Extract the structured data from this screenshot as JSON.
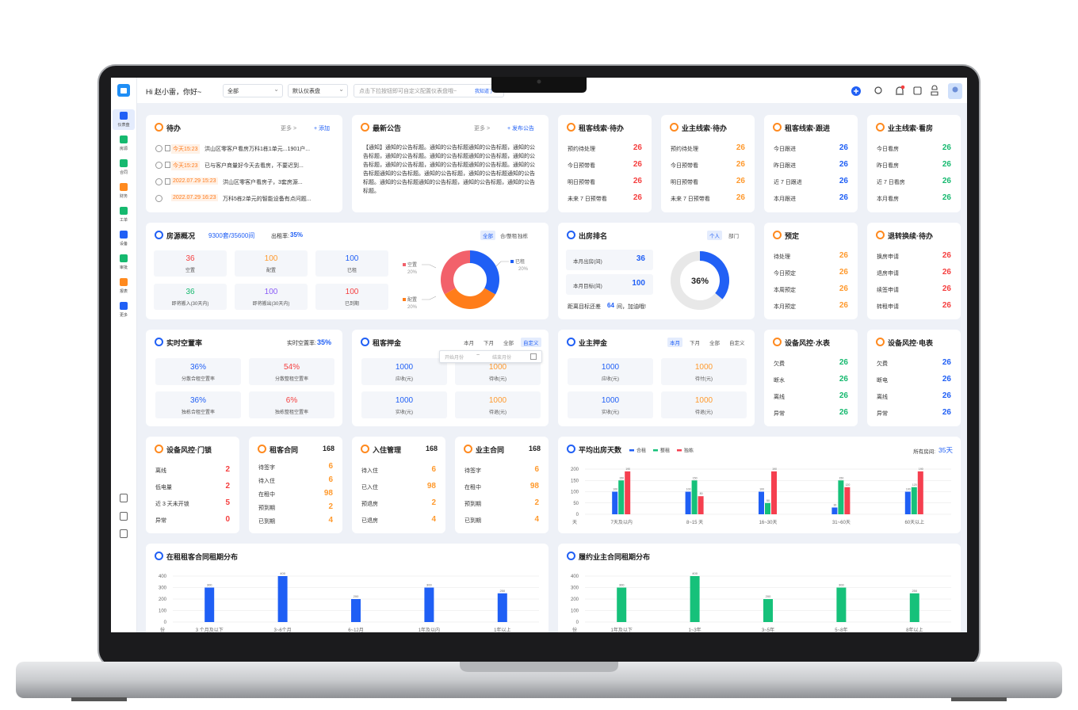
{
  "topbar": {
    "greeting": "Hi 赵小雷，你好~",
    "filter": "全部",
    "dashboard": "默认仪表盘",
    "search": "点击下拉按钮即可自定义配置仪表盘哦~",
    "search_link": "我知道了"
  },
  "sidebar": [
    "仪表盘",
    "房源",
    "合同",
    "财务",
    "工单",
    "设备",
    "审批",
    "报表",
    "更多"
  ],
  "todo": {
    "title": "待办",
    "more": "更多 >",
    "action": "+ 添加",
    "items": [
      {
        "time": "今天15:23",
        "text": "洪山区零客户看房万科1栋1单元...1901户..."
      },
      {
        "time": "今天15:23",
        "text": "已与客户商量好今天去看房，不要迟到..."
      },
      {
        "time": "2022.07.29 15:23",
        "text": "洪山区零客户看房子，3套房源..."
      },
      {
        "time": "2022.07.29 16:23",
        "text": "万科5栋2单元的智能设备有点问题..."
      }
    ]
  },
  "notice": {
    "title": "最新公告",
    "more": "更多 >",
    "action": "+ 发布公告",
    "body": "【通知】通知的公告标题。通知的公告标题通知的公告标题，通知的公告标题，通知的公告标题。通知的公告标题通知的公告标题，通知的公告标题，通知的公告标题，通知的公告标题通知的公告标题。通知的公告标题通知的公告标题。通知的公告标题，通知的公告标题通知的公告标题。通知的公告标题通知的公告标题，通知的公告标题，通知的公告标题。"
  },
  "kv_cards": [
    {
      "title": "租客线索·待办",
      "color": "#f53f3f",
      "rows": [
        {
          "label": "预约待处理",
          "value": 26
        },
        {
          "label": "今日预带看",
          "value": 26
        },
        {
          "label": "明日预带看",
          "value": 26
        },
        {
          "label": "未来 7 日预带看",
          "value": 26
        }
      ]
    },
    {
      "title": "业主线索·待办",
      "color": "#ff9a2e",
      "rows": [
        {
          "label": "预约待处理",
          "value": 26
        },
        {
          "label": "今日预带看",
          "value": 26
        },
        {
          "label": "明日预带看",
          "value": 26
        },
        {
          "label": "未来 7 日预带看",
          "value": 26
        }
      ]
    },
    {
      "title": "租客线索·跟进",
      "color": "#2160f5",
      "rows": [
        {
          "label": "今日跟进",
          "value": 26
        },
        {
          "label": "昨日跟进",
          "value": 26
        },
        {
          "label": "近 7 日跟进",
          "value": 26
        },
        {
          "label": "本月跟进",
          "value": 26
        }
      ]
    },
    {
      "title": "业主线索·看房",
      "color": "#16b96f",
      "rows": [
        {
          "label": "今日看房",
          "value": 26
        },
        {
          "label": "昨日看房",
          "value": 26
        },
        {
          "label": "近 7 日看房",
          "value": 26
        },
        {
          "label": "本月看房",
          "value": 26
        }
      ]
    },
    {
      "title": "预定",
      "color": "#ff9a2e",
      "rows": [
        {
          "label": "待处理",
          "value": 26
        },
        {
          "label": "今日预定",
          "value": 26
        },
        {
          "label": "本周预定",
          "value": 26
        },
        {
          "label": "本月预定",
          "value": 26
        }
      ]
    },
    {
      "title": "退转换续·待办",
      "color": "#f53f3f",
      "rows": [
        {
          "label": "换房申请",
          "value": 26
        },
        {
          "label": "退房申请",
          "value": 26
        },
        {
          "label": "续签申请",
          "value": 26
        },
        {
          "label": "转租申请",
          "value": 26
        }
      ]
    },
    {
      "title": "设备风控·水表",
      "color": "#16b96f",
      "rows": [
        {
          "label": "欠费",
          "value": 26
        },
        {
          "label": "断水",
          "value": 26
        },
        {
          "label": "离线",
          "value": 26
        },
        {
          "label": "异常",
          "value": 26
        }
      ]
    },
    {
      "title": "设备风控·电表",
      "color": "#2160f5",
      "rows": [
        {
          "label": "欠费",
          "value": 26
        },
        {
          "label": "断电",
          "value": 26
        },
        {
          "label": "离线",
          "value": 26
        },
        {
          "label": "异常",
          "value": 26
        }
      ]
    },
    {
      "title": "设备风控·门锁",
      "color": "#f53f3f",
      "rows": [
        {
          "label": "离线",
          "value": 2
        },
        {
          "label": "低电量",
          "value": 2
        },
        {
          "label": "近 3 天未开锁",
          "value": 5
        },
        {
          "label": "异常",
          "value": 0
        }
      ]
    },
    {
      "title": "租客合同",
      "total": 168,
      "color": "#ff9a2e",
      "rows": [
        {
          "label": "待签字",
          "value": 6
        },
        {
          "label": "待入住",
          "value": 6
        },
        {
          "label": "在租中",
          "value": 98
        },
        {
          "label": "预到期",
          "value": 2
        },
        {
          "label": "已到期",
          "value": 4
        }
      ]
    },
    {
      "title": "入住管理",
      "total": 168,
      "color": "#ff9a2e",
      "rows": [
        {
          "label": "待入住",
          "value": 6
        },
        {
          "label": "已入住",
          "value": 98
        },
        {
          "label": "预退房",
          "value": 2
        },
        {
          "label": "已退房",
          "value": 4
        }
      ]
    },
    {
      "title": "业主合同",
      "total": 168,
      "color": "#ff9a2e",
      "rows": [
        {
          "label": "待签字",
          "value": 6
        },
        {
          "label": "在租中",
          "value": 98
        },
        {
          "label": "预到期",
          "value": 2
        },
        {
          "label": "已到期",
          "value": 4
        }
      ]
    }
  ],
  "house_overview": {
    "title": "房源概况",
    "summary": "9300套/35600间",
    "rate_label": "出租率:",
    "rate": "35%",
    "tabs": [
      "全部",
      "合/整租",
      "独栋"
    ],
    "stats": [
      {
        "value": 36,
        "label": "空置",
        "color": "#f53f3f"
      },
      {
        "value": 100,
        "label": "配置",
        "color": "#ff9a2e"
      },
      {
        "value": 100,
        "label": "已租",
        "color": "#2160f5"
      },
      {
        "value": 36,
        "label": "即将搬入(30天内)",
        "color": "#16b96f"
      },
      {
        "value": 100,
        "label": "即将搬出(30天内)",
        "color": "#8a5cf6"
      },
      {
        "value": 100,
        "label": "已到期",
        "color": "#f53f3f"
      }
    ]
  },
  "ranking": {
    "title": "出房排名",
    "tabs": [
      "个人",
      "部门"
    ],
    "stats": [
      {
        "label": "本月出房(间)",
        "value": 36
      },
      {
        "label": "本月目标(间)",
        "value": 100
      }
    ],
    "footer_pre": "距离目标还差",
    "footer_value": 64,
    "footer_post": "间，加油哦!",
    "progress": 36,
    "progress_label": "36%"
  },
  "vacancy": {
    "title": "实时空置率",
    "rate_label": "实时空置率:",
    "rate": "35%",
    "stats": [
      {
        "value": "36%",
        "label": "分散合租空置率",
        "color": "#2160f5"
      },
      {
        "value": "54%",
        "label": "分散整租空置率",
        "color": "#f53f3f"
      },
      {
        "value": "36%",
        "label": "独栋合租空置率",
        "color": "#2160f5"
      },
      {
        "value": "6%",
        "label": "独栋整租空置率",
        "color": "#f53f3f"
      }
    ]
  },
  "deposits": [
    {
      "title": "租客押金",
      "tabs": [
        "本月",
        "下月",
        "全部",
        "自定义"
      ],
      "date_start": "开始月份",
      "date_sep": "~",
      "date_end": "结束月份",
      "stats": [
        {
          "value": 1000,
          "label": "应收(元)",
          "color": "#2160f5"
        },
        {
          "value": 1000,
          "label": "待收(元)",
          "color": "#ff9a2e"
        },
        {
          "value": 1000,
          "label": "实收(元)",
          "color": "#2160f5"
        },
        {
          "value": 1000,
          "label": "待退(元)",
          "color": "#ff9a2e"
        }
      ]
    },
    {
      "title": "业主押金",
      "tabs": [
        "本月",
        "下月",
        "全部",
        "自定义"
      ],
      "stats": [
        {
          "value": 1000,
          "label": "应收(元)",
          "color": "#2160f5"
        },
        {
          "value": 1000,
          "label": "待付(元)",
          "color": "#ff9a2e"
        },
        {
          "value": 1000,
          "label": "实收(元)",
          "color": "#2160f5"
        },
        {
          "value": 1000,
          "label": "待退(元)",
          "color": "#ff9a2e"
        }
      ]
    }
  ],
  "chart_data": [
    {
      "type": "pie",
      "categories": [
        "空置",
        "配置",
        "已租"
      ],
      "values": [
        20,
        20,
        20
      ],
      "value_labels": [
        "20%",
        "20%",
        "20%"
      ],
      "colors": [
        "#f2616b",
        "#ff7d1a",
        "#1f5ff5"
      ]
    },
    {
      "type": "bar",
      "title": "平均出房天数",
      "summary_label": "所有房间:",
      "summary": "35天",
      "unit": "天",
      "categories": [
        "7天及以内",
        "8~15 天",
        "16~30天",
        "31~60天",
        "60天以上"
      ],
      "series": [
        {
          "name": "合租",
          "color": "#1f5ff5",
          "values": [
            100,
            100,
            100,
            30,
            100
          ]
        },
        {
          "name": "整租",
          "color": "#16c17a",
          "values": [
            150,
            150,
            50,
            150,
            120
          ]
        },
        {
          "name": "独栋",
          "color": "#f53f4f",
          "values": [
            190,
            80,
            190,
            120,
            190
          ]
        }
      ],
      "ylim": [
        0,
        200
      ],
      "yticks": [
        0,
        50,
        100,
        150,
        200
      ],
      "grid": true
    },
    {
      "type": "bar",
      "title": "在租租客合同租期分布",
      "unit": "份",
      "categories": [
        "3 个月及以下",
        "3~6个月",
        "6~12月",
        "1年及以内",
        "1年以上"
      ],
      "values": [
        300,
        400,
        200,
        300,
        250
      ],
      "color": "#1f5ff5",
      "ylim": [
        0,
        400
      ],
      "yticks": [
        0,
        100,
        200,
        300,
        400
      ],
      "grid": true
    },
    {
      "type": "bar",
      "title": "履约业主合同租期分布",
      "unit": "份",
      "categories": [
        "1年及以下",
        "1~3年",
        "3~5年",
        "5~8年",
        "8年以上"
      ],
      "values": [
        300,
        400,
        200,
        300,
        250
      ],
      "color": "#16c17a",
      "ylim": [
        0,
        400
      ],
      "yticks": [
        0,
        100,
        200,
        300,
        400
      ],
      "grid": true
    }
  ]
}
